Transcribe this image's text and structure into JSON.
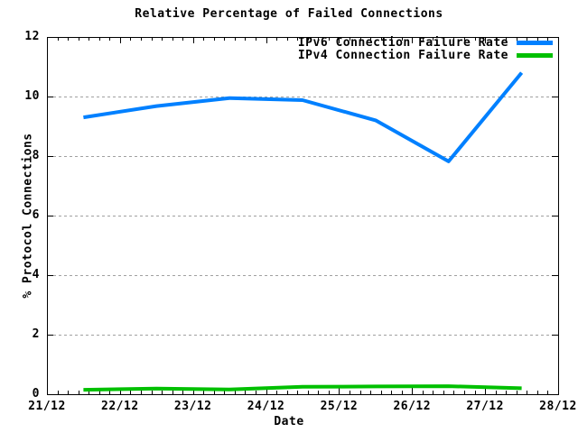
{
  "chart_data": {
    "type": "line",
    "title": "Relative Percentage of Failed Connections",
    "xlabel": "Date",
    "ylabel": "% Protocol Connections",
    "x_tick_labels": [
      "21/12",
      "22/12",
      "23/12",
      "24/12",
      "25/12",
      "26/12",
      "27/12",
      "28/12"
    ],
    "xlim_days": [
      0,
      7
    ],
    "ylim": [
      0,
      12
    ],
    "y_ticks": [
      0,
      2,
      4,
      6,
      8,
      10,
      12
    ],
    "grid_y": [
      2,
      4,
      6,
      8,
      10
    ],
    "minor_ticks_per_day": 7,
    "grid_style": "horizontal-dotted",
    "legend_position": "top-right-inside",
    "x_days": [
      0.5,
      1.5,
      2.5,
      3.5,
      4.5,
      5.5,
      6.5
    ],
    "series": [
      {
        "name": "IPv6 Connection Failure Rate",
        "color": "#0080ff",
        "values": [
          9.3,
          9.68,
          9.95,
          9.88,
          9.2,
          7.82,
          10.8
        ]
      },
      {
        "name": "IPv4 Connection Failure Rate",
        "color": "#00c000",
        "values": [
          0.15,
          0.19,
          0.16,
          0.25,
          0.26,
          0.27,
          0.2
        ]
      }
    ],
    "colors": {
      "grid": "#a0a0a0",
      "axis": "#000000",
      "background": "#ffffff"
    }
  }
}
